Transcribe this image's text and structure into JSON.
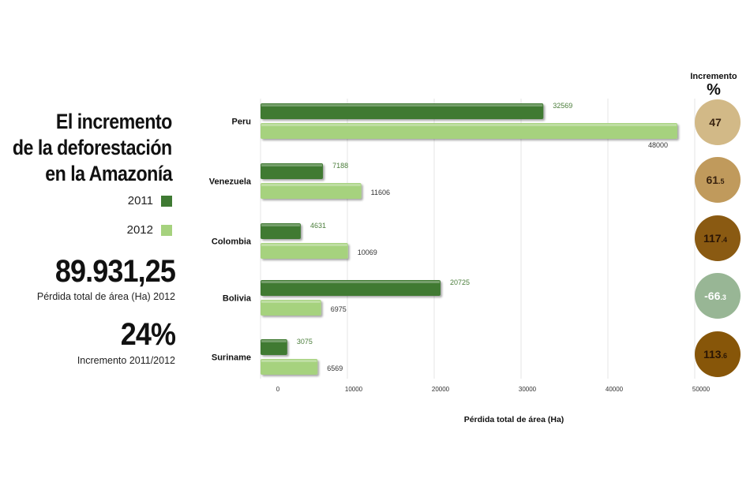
{
  "title_lines": [
    "El incremento",
    "de la deforestación",
    "en la Amazonía"
  ],
  "legend": [
    {
      "label": "2011",
      "color": "#3f7a33"
    },
    {
      "label": "2012",
      "color": "#a6d27e"
    }
  ],
  "stats": [
    {
      "value": "89.931,25",
      "caption": "Pérdida total de área (Ha) 2012"
    },
    {
      "value": "24%",
      "caption": "Incremento 2011/2012"
    }
  ],
  "chart_data": {
    "type": "bar",
    "orientation": "horizontal",
    "categories": [
      "Peru",
      "Venezuela",
      "Colombia",
      "Bolivia",
      "Suriname"
    ],
    "series": [
      {
        "name": "2011",
        "color": "#3f7a33",
        "values": [
          32569,
          7188,
          4631,
          20725,
          3075
        ],
        "labels": [
          "32569",
          "7188",
          "4631",
          "20725",
          "3075"
        ]
      },
      {
        "name": "2012",
        "color": "#a6d27e",
        "values": [
          48000,
          11606,
          10069,
          6975,
          6569
        ],
        "labels": [
          "48000",
          "11606",
          "10069",
          "6975",
          "6569"
        ]
      }
    ],
    "xlim": [
      0,
      50000
    ],
    "xticks": [
      0,
      10000,
      20000,
      30000,
      40000,
      50000
    ],
    "xtick_labels": [
      "0",
      "10000",
      "20000",
      "30000",
      "40000",
      "50000"
    ],
    "xlabel": "Pérdida total de área (Ha)",
    "grid": true,
    "increment": {
      "title": "Incremento",
      "unit": "%",
      "items": [
        {
          "int": "47",
          "dec": "",
          "color": "#d2b987",
          "text_color": "#3a2410"
        },
        {
          "int": "61",
          "dec": ".5",
          "color": "#c09a5c",
          "text_color": "#3a2410"
        },
        {
          "int": "117",
          "dec": ".4",
          "color": "#8a5a12",
          "text_color": "#2a1505"
        },
        {
          "int": "-66",
          "dec": ".3",
          "color": "#98b695",
          "text_color": "#ffffff"
        },
        {
          "int": "113",
          "dec": ".6",
          "color": "#875609",
          "text_color": "#2a1505"
        }
      ]
    }
  }
}
